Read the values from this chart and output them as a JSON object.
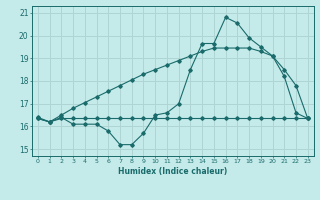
{
  "xlabel": "Humidex (Indice chaleur)",
  "ylabel": "",
  "bg_color": "#c5eaea",
  "grid_color": "#aed4d4",
  "line_color": "#1a6b6b",
  "xlim": [
    -0.5,
    23.5
  ],
  "ylim": [
    14.7,
    21.3
  ],
  "yticks": [
    15,
    16,
    17,
    18,
    19,
    20,
    21
  ],
  "xticks": [
    0,
    1,
    2,
    3,
    4,
    5,
    6,
    7,
    8,
    9,
    10,
    11,
    12,
    13,
    14,
    15,
    16,
    17,
    18,
    19,
    20,
    21,
    22,
    23
  ],
  "x": [
    0,
    1,
    2,
    3,
    4,
    5,
    6,
    7,
    8,
    9,
    10,
    11,
    12,
    13,
    14,
    15,
    16,
    17,
    18,
    19,
    20,
    21,
    22,
    23
  ],
  "line1": [
    16.4,
    16.2,
    16.4,
    16.1,
    16.1,
    16.1,
    15.8,
    15.2,
    15.2,
    15.7,
    16.5,
    16.6,
    17.0,
    18.5,
    19.65,
    19.65,
    20.8,
    20.55,
    19.9,
    19.5,
    19.1,
    18.2,
    16.6,
    16.35
  ],
  "line2": [
    16.35,
    16.2,
    16.35,
    16.35,
    16.35,
    16.35,
    16.35,
    16.35,
    16.35,
    16.35,
    16.35,
    16.35,
    16.35,
    16.35,
    16.35,
    16.35,
    16.35,
    16.35,
    16.35,
    16.35,
    16.35,
    16.35,
    16.35,
    16.35
  ],
  "line3": [
    16.35,
    16.2,
    16.5,
    16.8,
    17.05,
    17.3,
    17.55,
    17.8,
    18.05,
    18.3,
    18.5,
    18.7,
    18.9,
    19.1,
    19.3,
    19.45,
    19.45,
    19.45,
    19.45,
    19.3,
    19.1,
    18.5,
    17.8,
    16.35
  ]
}
